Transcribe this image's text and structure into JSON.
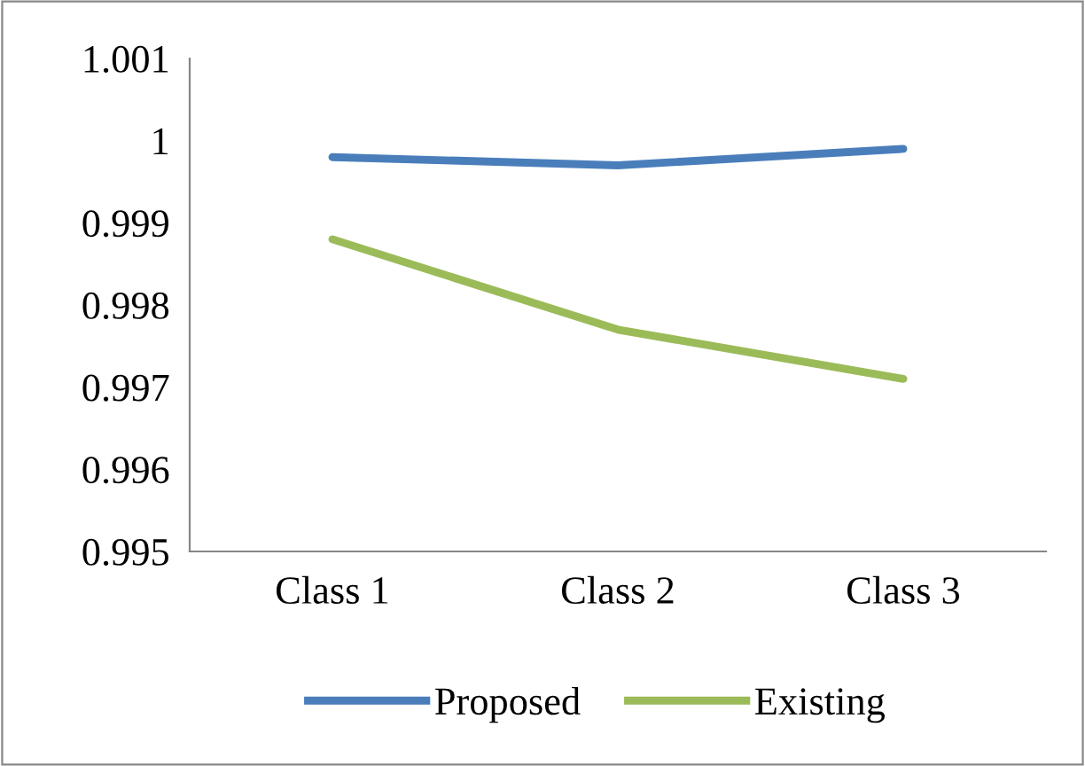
{
  "chart_data": {
    "type": "line",
    "categories": [
      "Class 1",
      "Class 2",
      "Class 3"
    ],
    "series": [
      {
        "name": "Proposed",
        "color": "#4a7ebb",
        "values": [
          0.9998,
          0.9997,
          0.9999
        ]
      },
      {
        "name": "Existing",
        "color": "#9bbb59",
        "values": [
          0.9988,
          0.9977,
          0.9971
        ]
      }
    ],
    "ylim": [
      0.995,
      1.001
    ],
    "yticks": [
      0.995,
      0.996,
      0.997,
      0.998,
      0.999,
      1,
      1.001
    ],
    "grid": false,
    "legend": "bottom",
    "marker": "none",
    "line_style": "solid"
  }
}
